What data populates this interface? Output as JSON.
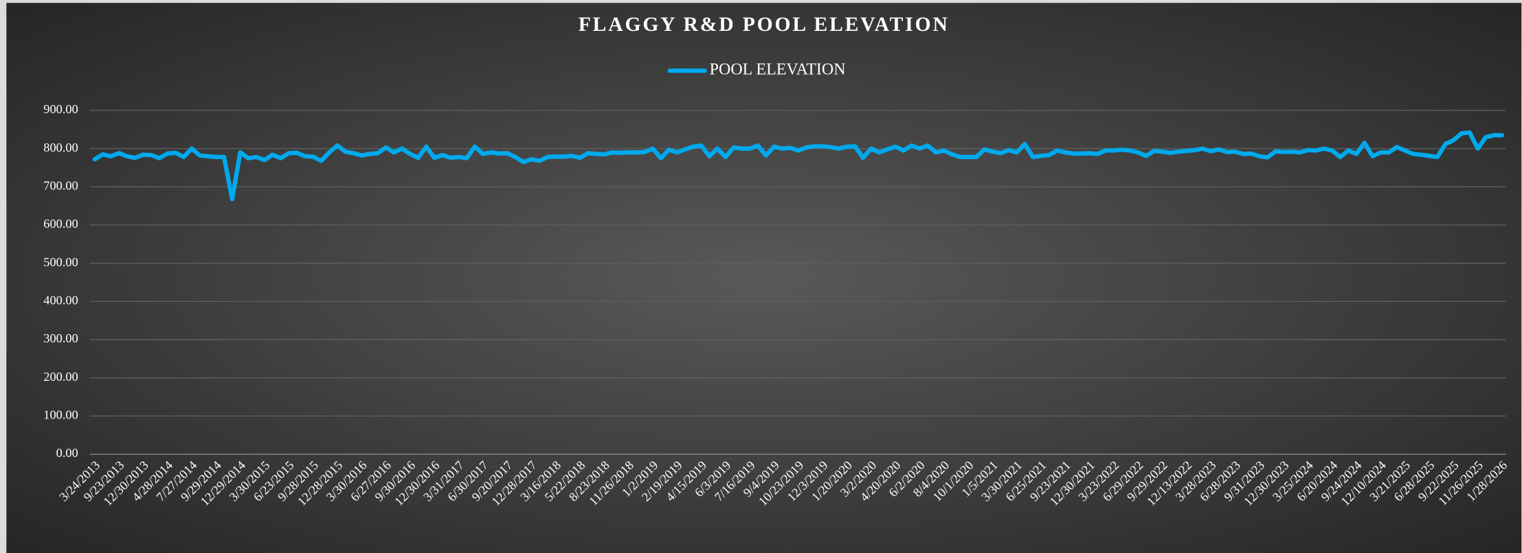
{
  "chart_data": {
    "type": "line",
    "title": "FLAGGY R&D POOL ELEVATION",
    "categories": [
      "3/24/2013",
      null,
      null,
      "9/23/2013",
      null,
      null,
      "12/30/2013",
      null,
      null,
      "4/28/2014",
      null,
      null,
      "7/27/2014",
      null,
      null,
      "9/29/2014",
      null,
      null,
      "12/29/2014",
      null,
      null,
      "3/30/2015",
      null,
      null,
      "6/23/2015",
      null,
      null,
      "9/28/2015",
      null,
      null,
      "12/28/2015",
      null,
      null,
      "3/30/2016",
      null,
      null,
      "6/27/2016",
      null,
      null,
      "9/30/2016",
      null,
      null,
      "12/30/2016",
      null,
      null,
      "3/31/2017",
      null,
      null,
      "6/30/2017",
      null,
      null,
      "9/20/2017",
      null,
      null,
      "12/28/2017",
      null,
      null,
      "3/16/2018",
      null,
      null,
      "5/22/2018",
      null,
      null,
      "8/23/2018",
      null,
      null,
      "11/26/2018",
      null,
      null,
      "1/2/2019",
      null,
      null,
      "2/19/2019",
      null,
      null,
      "4/15/2019",
      null,
      null,
      "6/3/2019",
      null,
      null,
      "7/16/2019",
      null,
      null,
      "9/4/2019",
      null,
      null,
      "10/23/2019",
      null,
      null,
      "12/3/2019",
      null,
      null,
      "1/20/2020",
      null,
      null,
      "3/2/2020",
      null,
      null,
      "4/20/2020",
      null,
      null,
      "6/2/2020",
      null,
      null,
      "8/4/2020",
      null,
      null,
      "10/1/2020",
      null,
      null,
      "1/5/2021",
      null,
      null,
      "3/30/2021",
      null,
      null,
      "6/25/2021",
      null,
      null,
      "9/23/2021",
      null,
      null,
      "12/30/2021",
      null,
      null,
      "3/23/2022",
      null,
      null,
      "6/29/2022",
      null,
      null,
      "9/29/2022",
      null,
      null,
      "12/13/2022",
      null,
      null,
      "3/28/2023",
      null,
      null,
      "6/28/2023",
      null,
      null,
      "9/31/2023",
      null,
      null,
      "12/30/2023",
      null,
      null,
      "3/25/2024",
      null,
      null,
      "6/20/2024",
      null,
      null,
      "9/24/2024",
      null,
      null,
      "12/10/2024",
      null,
      null,
      "3/21/2025",
      null,
      null,
      "6/28/2025",
      null,
      null,
      "9/22/2025",
      null,
      null,
      "11/26/2025",
      null,
      null,
      "1/28/2026"
    ],
    "series": [
      {
        "name": "POOL ELEVATION",
        "color": "#00a9ec",
        "values": [
          772,
          785,
          780,
          788,
          780,
          776,
          784,
          783,
          775,
          787,
          789,
          778,
          800,
          782,
          780,
          778,
          778,
          668,
          790,
          775,
          778,
          770,
          784,
          775,
          788,
          789,
          780,
          779,
          768,
          790,
          808,
          792,
          788,
          782,
          786,
          788,
          803,
          790,
          800,
          786,
          776,
          805,
          776,
          783,
          776,
          778,
          775,
          805,
          786,
          790,
          787,
          788,
          778,
          765,
          772,
          768,
          778,
          779,
          779,
          781,
          776,
          788,
          786,
          785,
          790,
          789,
          790,
          790,
          791,
          800,
          775,
          797,
          790,
          798,
          805,
          808,
          780,
          800,
          778,
          803,
          800,
          800,
          808,
          782,
          805,
          800,
          802,
          795,
          803,
          806,
          806,
          804,
          800,
          805,
          806,
          776,
          800,
          790,
          798,
          805,
          795,
          808,
          800,
          808,
          790,
          795,
          785,
          778,
          778,
          778,
          798,
          792,
          788,
          796,
          790,
          812,
          778,
          781,
          783,
          795,
          790,
          787,
          787,
          788,
          786,
          795,
          795,
          797,
          795,
          790,
          781,
          794,
          792,
          789,
          792,
          794,
          796,
          800,
          793,
          798,
          791,
          792,
          786,
          787,
          780,
          777,
          793,
          791,
          792,
          790,
          796,
          795,
          800,
          795,
          778,
          795,
          786,
          815,
          780,
          790,
          790,
          804,
          795,
          786,
          784,
          781,
          778,
          812,
          822,
          840,
          842,
          800,
          830,
          835,
          835
        ]
      }
    ],
    "ylim": [
      0,
      900
    ],
    "yticks": [
      {
        "value": 0,
        "label": "0.00"
      },
      {
        "value": 100,
        "label": "100.00"
      },
      {
        "value": 200,
        "label": "200.00"
      },
      {
        "value": 300,
        "label": "300.00"
      },
      {
        "value": 400,
        "label": "400.00"
      },
      {
        "value": 500,
        "label": "500.00"
      },
      {
        "value": 600,
        "label": "600.00"
      },
      {
        "value": 700,
        "label": "700.00"
      },
      {
        "value": 800,
        "label": "800.00"
      },
      {
        "value": 900,
        "label": "900.00"
      }
    ],
    "grid": true,
    "legend": "top"
  }
}
